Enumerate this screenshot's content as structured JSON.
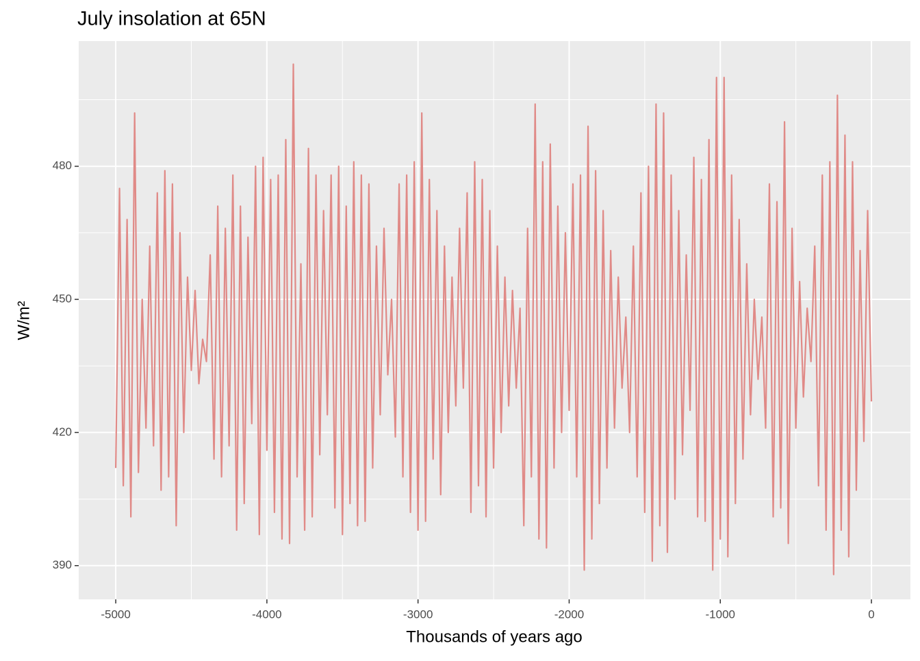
{
  "chart_data": {
    "type": "line",
    "title": "July insolation at 65N",
    "x_label": "Thousands of years ago",
    "y_label": "W/m²",
    "color": "#e08a87",
    "grid": true,
    "xlim": [
      -5245,
      258
    ],
    "ylim": [
      382.4,
      508.2
    ],
    "xticks": [
      -5000,
      -4000,
      -3000,
      -2000,
      -1000,
      0
    ],
    "minor_xticks": [
      -4500,
      -3500,
      -2500,
      -1500,
      -500
    ],
    "yticks": [
      390,
      420,
      450,
      480
    ],
    "minor_yticks": [
      405,
      435,
      465,
      495
    ],
    "x": [
      -5000,
      -4975,
      -4950,
      -4925,
      -4900,
      -4875,
      -4850,
      -4825,
      -4800,
      -4775,
      -4750,
      -4725,
      -4700,
      -4675,
      -4650,
      -4625,
      -4600,
      -4575,
      -4550,
      -4525,
      -4500,
      -4475,
      -4450,
      -4425,
      -4400,
      -4375,
      -4350,
      -4325,
      -4300,
      -4275,
      -4250,
      -4225,
      -4200,
      -4175,
      -4150,
      -4125,
      -4100,
      -4075,
      -4050,
      -4025,
      -4000,
      -3975,
      -3950,
      -3925,
      -3900,
      -3875,
      -3850,
      -3825,
      -3800,
      -3775,
      -3750,
      -3725,
      -3700,
      -3675,
      -3650,
      -3625,
      -3600,
      -3575,
      -3550,
      -3525,
      -3500,
      -3475,
      -3450,
      -3425,
      -3400,
      -3375,
      -3350,
      -3325,
      -3300,
      -3275,
      -3250,
      -3225,
      -3200,
      -3175,
      -3150,
      -3125,
      -3100,
      -3075,
      -3050,
      -3025,
      -3000,
      -2975,
      -2950,
      -2925,
      -2900,
      -2875,
      -2850,
      -2825,
      -2800,
      -2775,
      -2750,
      -2725,
      -2700,
      -2675,
      -2650,
      -2625,
      -2600,
      -2575,
      -2550,
      -2525,
      -2500,
      -2475,
      -2450,
      -2425,
      -2400,
      -2375,
      -2350,
      -2325,
      -2300,
      -2275,
      -2250,
      -2225,
      -2200,
      -2175,
      -2150,
      -2125,
      -2100,
      -2075,
      -2050,
      -2025,
      -2000,
      -1975,
      -1950,
      -1925,
      -1900,
      -1875,
      -1850,
      -1825,
      -1800,
      -1775,
      -1750,
      -1725,
      -1700,
      -1675,
      -1650,
      -1625,
      -1600,
      -1575,
      -1550,
      -1525,
      -1500,
      -1475,
      -1450,
      -1425,
      -1400,
      -1375,
      -1350,
      -1325,
      -1300,
      -1275,
      -1250,
      -1225,
      -1200,
      -1175,
      -1150,
      -1125,
      -1100,
      -1075,
      -1050,
      -1025,
      -1000,
      -975,
      -950,
      -925,
      -900,
      -875,
      -850,
      -825,
      -800,
      -775,
      -750,
      -725,
      -700,
      -675,
      -650,
      -625,
      -600,
      -575,
      -550,
      -525,
      -500,
      -475,
      -450,
      -425,
      -400,
      -375,
      -350,
      -325,
      -300,
      -275,
      -250,
      -225,
      -200,
      -175,
      -150,
      -125,
      -100,
      -75,
      -50,
      -25,
      0
    ],
    "values": [
      412,
      475,
      408,
      468,
      401,
      492,
      411,
      450,
      421,
      462,
      417,
      474,
      407,
      479,
      410,
      476,
      399,
      465,
      420,
      455,
      434,
      452,
      431,
      441,
      436,
      460,
      414,
      471,
      410,
      466,
      417,
      478,
      398,
      471,
      404,
      464,
      422,
      480,
      397,
      482,
      416,
      477,
      402,
      478,
      396,
      486,
      395,
      503,
      410,
      458,
      398,
      484,
      401,
      478,
      415,
      470,
      424,
      478,
      403,
      480,
      397,
      471,
      404,
      481,
      399,
      478,
      400,
      476,
      412,
      462,
      424,
      466,
      433,
      450,
      419,
      476,
      410,
      478,
      402,
      481,
      398,
      492,
      400,
      477,
      414,
      470,
      406,
      462,
      420,
      455,
      426,
      466,
      430,
      474,
      402,
      481,
      408,
      477,
      401,
      470,
      412,
      462,
      420,
      455,
      426,
      452,
      430,
      448,
      399,
      466,
      410,
      494,
      396,
      481,
      394,
      485,
      412,
      471,
      420,
      465,
      425,
      476,
      410,
      478,
      389,
      489,
      396,
      479,
      404,
      470,
      412,
      461,
      421,
      455,
      430,
      446,
      420,
      462,
      410,
      474,
      402,
      480,
      391,
      494,
      399,
      492,
      393,
      478,
      405,
      470,
      415,
      460,
      425,
      482,
      401,
      477,
      400,
      486,
      389,
      500,
      396,
      500,
      392,
      478,
      404,
      468,
      414,
      458,
      424,
      450,
      432,
      446,
      421,
      476,
      401,
      472,
      403,
      490,
      395,
      466,
      421,
      454,
      428,
      448,
      436,
      462,
      408,
      478,
      398,
      481,
      388,
      496,
      398,
      487,
      392,
      481,
      407,
      461,
      418,
      470,
      427
    ]
  }
}
